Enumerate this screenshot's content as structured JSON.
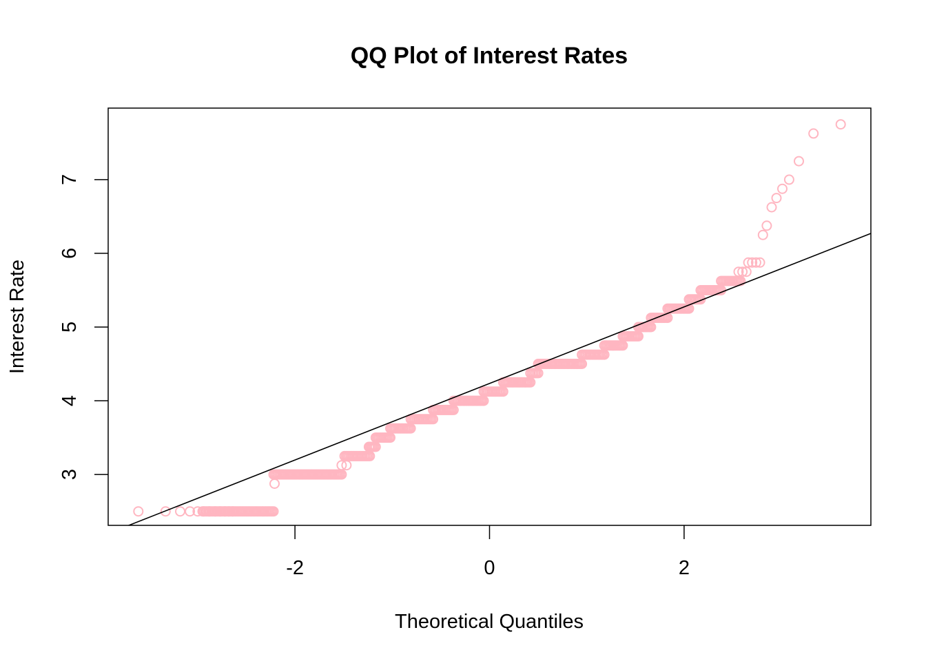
{
  "chart_data": {
    "type": "scatter",
    "title": "QQ Plot of Interest Rates",
    "xlabel": "Theoretical Quantiles",
    "ylabel": "Interest Rate",
    "xlim": [
      -3.92,
      3.92
    ],
    "ylim": [
      2.31,
      7.97
    ],
    "x_ticks": [
      -2,
      0,
      2
    ],
    "x_tick_labels": [
      "-2",
      "0",
      "2"
    ],
    "y_ticks": [
      3,
      4,
      5,
      6,
      7
    ],
    "y_tick_labels": [
      "3",
      "4",
      "5",
      "6",
      "7"
    ],
    "grid": false,
    "legend": "none",
    "point_color": "#FFB6C1",
    "line_color": "#000000",
    "reference_line": {
      "x": [
        -3.92,
        3.92
      ],
      "y": [
        2.2,
        6.27
      ]
    },
    "steps": [
      {
        "y": 2.5,
        "x0": -2.95,
        "x1": -2.22
      },
      {
        "y": 3.0,
        "x0": -2.22,
        "x1": -1.52
      },
      {
        "y": 3.25,
        "x0": -1.49,
        "x1": -1.23
      },
      {
        "y": 3.375,
        "x0": -1.24,
        "x1": -1.17
      },
      {
        "y": 3.5,
        "x0": -1.17,
        "x1": -1.02
      },
      {
        "y": 3.625,
        "x0": -1.02,
        "x1": -0.81
      },
      {
        "y": 3.75,
        "x0": -0.81,
        "x1": -0.58
      },
      {
        "y": 3.875,
        "x0": -0.58,
        "x1": -0.37
      },
      {
        "y": 4.0,
        "x0": -0.37,
        "x1": -0.06
      },
      {
        "y": 4.125,
        "x0": -0.06,
        "x1": 0.14
      },
      {
        "y": 4.25,
        "x0": 0.14,
        "x1": 0.42
      },
      {
        "y": 4.375,
        "x0": 0.42,
        "x1": 0.5
      },
      {
        "y": 4.5,
        "x0": 0.5,
        "x1": 0.95
      },
      {
        "y": 4.625,
        "x0": 0.95,
        "x1": 1.18
      },
      {
        "y": 4.75,
        "x0": 1.18,
        "x1": 1.37
      },
      {
        "y": 4.875,
        "x0": 1.37,
        "x1": 1.53
      },
      {
        "y": 5.0,
        "x0": 1.53,
        "x1": 1.66
      },
      {
        "y": 5.125,
        "x0": 1.66,
        "x1": 1.83
      },
      {
        "y": 5.25,
        "x0": 1.83,
        "x1": 2.05
      },
      {
        "y": 5.375,
        "x0": 2.05,
        "x1": 2.17
      },
      {
        "y": 5.5,
        "x0": 2.17,
        "x1": 2.38
      },
      {
        "y": 5.625,
        "x0": 2.38,
        "x1": 2.58
      }
    ],
    "points": [
      {
        "x": -3.61,
        "y": 2.5
      },
      {
        "x": -3.33,
        "y": 2.5
      },
      {
        "x": -3.18,
        "y": 2.5
      },
      {
        "x": -3.08,
        "y": 2.5
      },
      {
        "x": -3.0,
        "y": 2.5
      },
      {
        "x": -2.94,
        "y": 2.5
      },
      {
        "x": -2.88,
        "y": 2.5
      },
      {
        "x": -2.82,
        "y": 2.5
      },
      {
        "x": -2.77,
        "y": 2.5
      },
      {
        "x": -2.72,
        "y": 2.5
      },
      {
        "x": -2.68,
        "y": 2.5
      },
      {
        "x": -2.64,
        "y": 2.5
      },
      {
        "x": -2.21,
        "y": 2.875
      },
      {
        "x": -1.52,
        "y": 3.125
      },
      {
        "x": -1.47,
        "y": 3.125
      },
      {
        "x": 2.56,
        "y": 5.75
      },
      {
        "x": 2.6,
        "y": 5.75
      },
      {
        "x": 2.64,
        "y": 5.75
      },
      {
        "x": 2.66,
        "y": 5.875
      },
      {
        "x": 2.7,
        "y": 5.875
      },
      {
        "x": 2.74,
        "y": 5.875
      },
      {
        "x": 2.78,
        "y": 5.875
      },
      {
        "x": 2.81,
        "y": 6.25
      },
      {
        "x": 2.85,
        "y": 6.375
      },
      {
        "x": 2.9,
        "y": 6.625
      },
      {
        "x": 2.95,
        "y": 6.75
      },
      {
        "x": 3.01,
        "y": 6.875
      },
      {
        "x": 3.08,
        "y": 7.0
      },
      {
        "x": 3.18,
        "y": 7.25
      },
      {
        "x": 3.33,
        "y": 7.625
      },
      {
        "x": 3.61,
        "y": 7.75
      }
    ]
  }
}
